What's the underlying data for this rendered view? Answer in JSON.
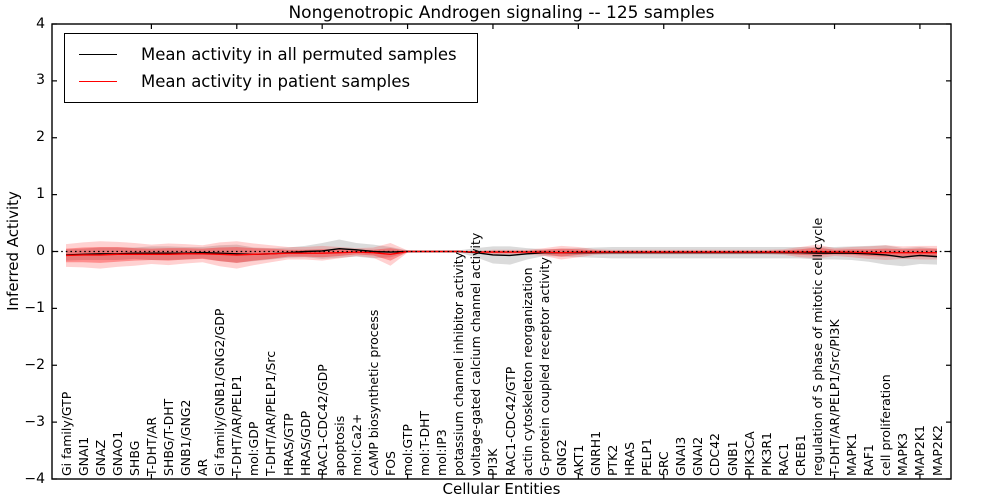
{
  "title": "Nongenotropic Androgen signaling -- 125 samples",
  "legend": {
    "items": [
      {
        "label": "Mean activity in all permuted samples",
        "color": "#000000"
      },
      {
        "label": "Mean activity in patient samples",
        "color": "#ff0000"
      }
    ]
  },
  "chart_data": {
    "type": "line",
    "title": "Nongenotropic Androgen signaling -- 125 samples",
    "xlabel": "Cellular Entities",
    "ylabel": "Inferred Activity",
    "ylim": [
      -4,
      4
    ],
    "yticks": [
      -4,
      -3,
      -2,
      -1,
      0,
      1,
      2,
      3,
      4
    ],
    "grid": false,
    "legend_position": "upper left",
    "zero_reference_line": 0,
    "x_major_tick_indices": [
      5,
      10,
      15,
      20,
      25,
      30,
      35,
      40,
      45,
      50
    ],
    "categories": [
      "Gi family/GTP",
      "GNAI1",
      "GNAZ",
      "GNAO1",
      "SHBG",
      "T-DHT/AR",
      "SHBG/T-DHT",
      "GNB1/GNG2",
      "AR",
      "Gi family/GNB1/GNG2/GDP",
      "T-DHT/AR/PELP1",
      "mol:GDP",
      "T-DHT/AR/PELP1/Src",
      "HRAS/GTP",
      "HRAS/GDP",
      "RAC1-CDC42/GDP",
      "apoptosis",
      "mol:Ca2+",
      "cAMP biosynthetic process",
      "FOS",
      "mol:GTP",
      "mol:T-DHT",
      "mol:IP3",
      "potassium channel inhibitor activity",
      "voltage-gated calcium channel activity",
      "PI3K",
      "RAC1-CDC42/GTP",
      "actin cytoskeleton reorganization",
      "G-protein coupled receptor activity",
      "GNG2",
      "AKT1",
      "GNRH1",
      "PTK2",
      "HRAS",
      "PELP1",
      "SRC",
      "GNAI3",
      "GNAI2",
      "CDC42",
      "GNB1",
      "PIK3CA",
      "PIK3R1",
      "RAC1",
      "CREB1",
      "regulation of S phase of mitotic cell cycle",
      "T-DHT/AR/PELP1/Src/PI3K",
      "MAPK1",
      "RAF1",
      "cell proliferation",
      "MAPK3",
      "MAP2K1",
      "MAP2K2"
    ],
    "series": [
      {
        "name": "Mean activity in all permuted samples",
        "color": "#000000",
        "band_color": "rgba(0,0,0,0.14)",
        "values": [
          -0.06,
          -0.05,
          -0.04,
          -0.04,
          -0.03,
          -0.03,
          -0.03,
          -0.03,
          -0.02,
          -0.03,
          -0.04,
          -0.05,
          -0.04,
          -0.02,
          0.0,
          0.01,
          0.05,
          0.03,
          0.0,
          -0.01,
          0.0,
          0.0,
          0.0,
          0.0,
          -0.02,
          -0.06,
          -0.07,
          -0.04,
          -0.02,
          -0.02,
          -0.02,
          -0.02,
          -0.02,
          -0.02,
          -0.02,
          -0.02,
          -0.02,
          -0.02,
          -0.02,
          -0.02,
          -0.02,
          -0.02,
          -0.02,
          -0.02,
          -0.03,
          -0.03,
          -0.03,
          -0.04,
          -0.06,
          -0.1,
          -0.07,
          -0.09
        ],
        "band_half_width": [
          0.1,
          0.1,
          0.11,
          0.11,
          0.1,
          0.12,
          0.12,
          0.11,
          0.1,
          0.14,
          0.16,
          0.12,
          0.1,
          0.09,
          0.1,
          0.14,
          0.16,
          0.12,
          0.12,
          0.09,
          0.02,
          0.01,
          0.01,
          0.02,
          0.08,
          0.15,
          0.16,
          0.1,
          0.06,
          0.07,
          0.08,
          0.09,
          0.1,
          0.1,
          0.1,
          0.1,
          0.1,
          0.1,
          0.1,
          0.1,
          0.1,
          0.1,
          0.1,
          0.1,
          0.11,
          0.11,
          0.12,
          0.14,
          0.17,
          0.16,
          0.15,
          0.14
        ]
      },
      {
        "name": "Mean activity in patient samples",
        "color": "#ff0000",
        "band_outer_color": "rgba(255,0,0,0.18)",
        "band_inner_color": "rgba(255,0,0,0.32)",
        "values": [
          -0.07,
          -0.06,
          -0.06,
          -0.05,
          -0.05,
          -0.05,
          -0.05,
          -0.04,
          -0.04,
          -0.05,
          -0.06,
          -0.05,
          -0.04,
          -0.03,
          -0.03,
          -0.03,
          -0.02,
          -0.01,
          -0.02,
          -0.05,
          0.0,
          0.0,
          0.0,
          0.0,
          -0.01,
          -0.01,
          -0.01,
          -0.01,
          -0.01,
          -0.02,
          -0.01,
          -0.01,
          -0.01,
          -0.01,
          -0.01,
          -0.01,
          -0.01,
          -0.01,
          -0.01,
          -0.01,
          -0.01,
          -0.01,
          -0.01,
          -0.01,
          0.0,
          -0.01,
          -0.01,
          -0.02,
          -0.02,
          -0.02,
          -0.02,
          -0.02
        ],
        "band_outer_half_width": [
          0.2,
          0.22,
          0.24,
          0.22,
          0.2,
          0.17,
          0.19,
          0.17,
          0.15,
          0.21,
          0.24,
          0.19,
          0.15,
          0.11,
          0.11,
          0.13,
          0.1,
          0.07,
          0.09,
          0.2,
          0.02,
          0.01,
          0.01,
          0.01,
          0.02,
          0.04,
          0.04,
          0.04,
          0.07,
          0.12,
          0.09,
          0.05,
          0.04,
          0.04,
          0.04,
          0.04,
          0.04,
          0.04,
          0.04,
          0.04,
          0.04,
          0.04,
          0.05,
          0.09,
          0.12,
          0.07,
          0.09,
          0.11,
          0.13,
          0.11,
          0.12,
          0.12
        ],
        "band_inner_half_width": [
          0.12,
          0.13,
          0.14,
          0.13,
          0.11,
          0.1,
          0.11,
          0.1,
          0.09,
          0.12,
          0.14,
          0.11,
          0.09,
          0.06,
          0.06,
          0.07,
          0.06,
          0.04,
          0.05,
          0.11,
          0.01,
          0.005,
          0.005,
          0.005,
          0.01,
          0.02,
          0.02,
          0.02,
          0.04,
          0.07,
          0.05,
          0.03,
          0.02,
          0.02,
          0.02,
          0.02,
          0.02,
          0.02,
          0.02,
          0.02,
          0.02,
          0.02,
          0.03,
          0.05,
          0.07,
          0.04,
          0.05,
          0.06,
          0.07,
          0.06,
          0.07,
          0.07
        ]
      }
    ]
  }
}
